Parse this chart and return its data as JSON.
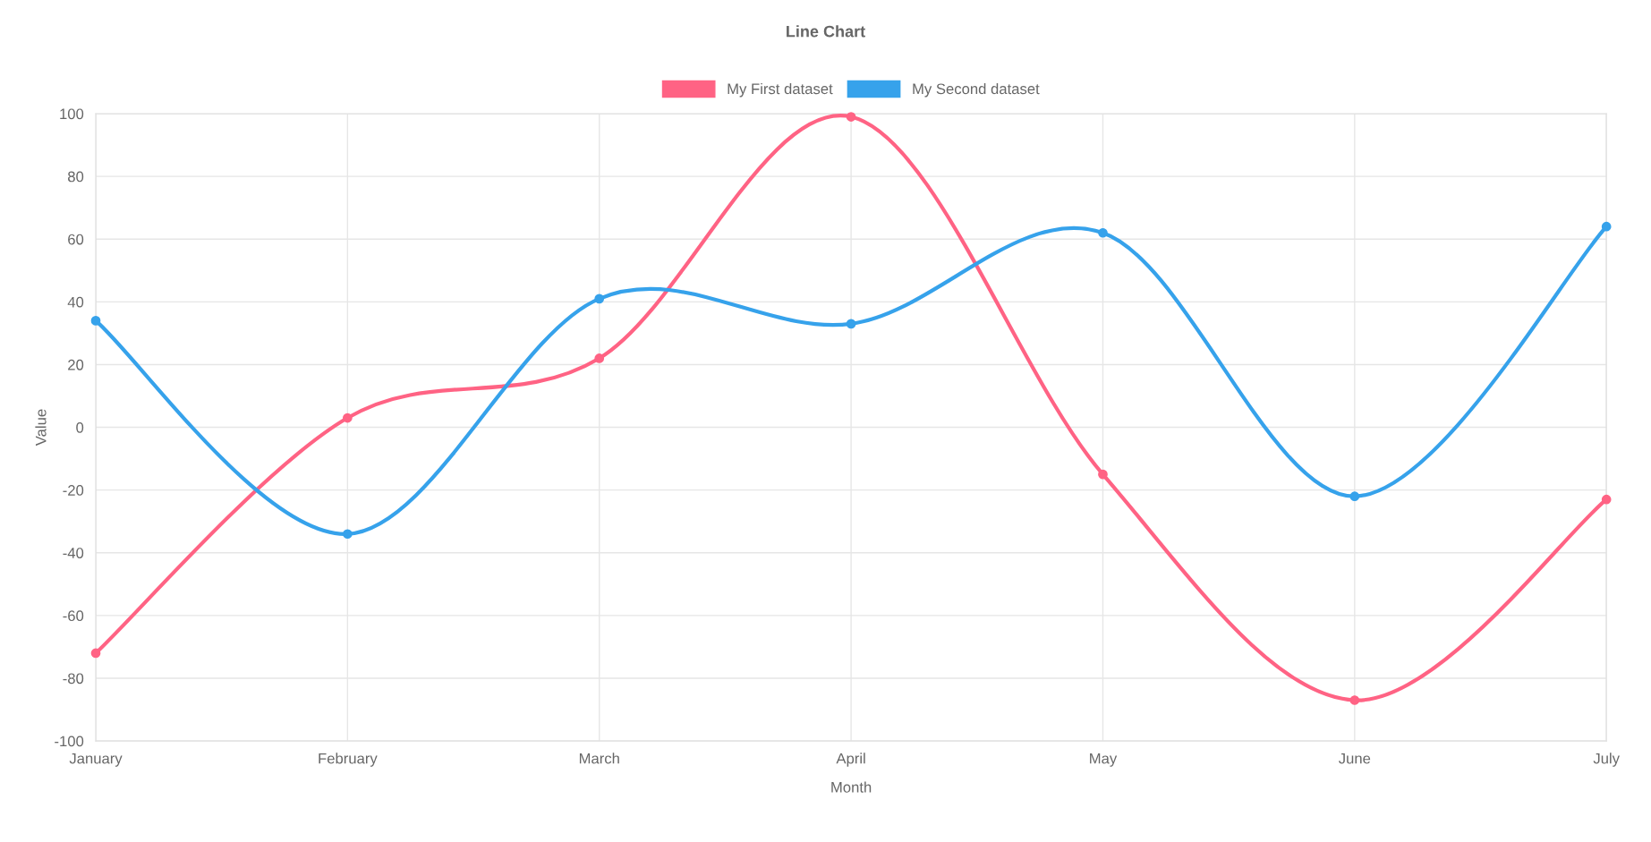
{
  "chart_data": {
    "type": "line",
    "title": "Line Chart",
    "xlabel": "Month",
    "ylabel": "Value",
    "categories": [
      "January",
      "February",
      "March",
      "April",
      "May",
      "June",
      "July"
    ],
    "series": [
      {
        "name": "My First dataset",
        "color": "#ff6384",
        "values": [
          -72,
          3,
          22,
          99,
          -15,
          -87,
          -23
        ]
      },
      {
        "name": "My Second dataset",
        "color": "#36a2eb",
        "values": [
          34,
          -34,
          41,
          33,
          62,
          -22,
          64
        ]
      }
    ],
    "ylim": [
      -100,
      100
    ],
    "yticks": [
      -100,
      -80,
      -60,
      -40,
      -20,
      0,
      20,
      40,
      60,
      80,
      100
    ],
    "grid": true,
    "legend": "top",
    "marker": "circle",
    "line_style": "solid"
  }
}
